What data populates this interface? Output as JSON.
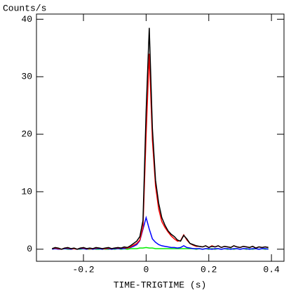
{
  "chart_data": {
    "type": "line",
    "y_label": "Counts/s",
    "x_label": "TIME-TRIGTIME (s)",
    "x": [
      -0.3,
      -0.29,
      -0.28,
      -0.27,
      -0.26,
      -0.25,
      -0.24,
      -0.23,
      -0.22,
      -0.21,
      -0.2,
      -0.19,
      -0.18,
      -0.17,
      -0.16,
      -0.15,
      -0.14,
      -0.13,
      -0.12,
      -0.11,
      -0.1,
      -0.09,
      -0.08,
      -0.07,
      -0.06,
      -0.05,
      -0.04,
      -0.03,
      -0.02,
      -0.01,
      0,
      0.01,
      0.02,
      0.03,
      0.04,
      0.05,
      0.06,
      0.07,
      0.08,
      0.09,
      0.1,
      0.11,
      0.12,
      0.13,
      0.14,
      0.15,
      0.16,
      0.17,
      0.18,
      0.19,
      0.2,
      0.21,
      0.22,
      0.23,
      0.24,
      0.25,
      0.26,
      0.27,
      0.28,
      0.29,
      0.3,
      0.31,
      0.32,
      0.33,
      0.34,
      0.35,
      0.36,
      0.37,
      0.38,
      0.39
    ],
    "series": [
      {
        "color": "#000000",
        "values": [
          0.1,
          0.3,
          0.2,
          0.0,
          0.2,
          0.3,
          0.1,
          0.2,
          0.0,
          0.2,
          0.3,
          0.1,
          0.2,
          0.1,
          0.3,
          0.2,
          0.1,
          0.2,
          0.3,
          0.1,
          0.2,
          0.3,
          0.2,
          0.4,
          0.3,
          0.6,
          1.0,
          1.4,
          2.2,
          5.0,
          24,
          38.5,
          21,
          12,
          8,
          5.5,
          4.2,
          3.2,
          2.6,
          2.2,
          1.6,
          1.4,
          2.4,
          1.8,
          1.0,
          0.8,
          0.6,
          0.5,
          0.4,
          0.6,
          0.3,
          0.5,
          0.4,
          0.6,
          0.3,
          0.5,
          0.4,
          0.3,
          0.6,
          0.4,
          0.3,
          0.5,
          0.4,
          0.3,
          0.5,
          0.2,
          0.4,
          0.3,
          0.4,
          0.3
        ]
      },
      {
        "color": "#ff0000",
        "values": [
          0.1,
          0.2,
          0.1,
          0.0,
          0.2,
          0.2,
          0.1,
          0.1,
          0.0,
          0.2,
          0.2,
          0.1,
          0.1,
          0.1,
          0.2,
          0.2,
          0.1,
          0.1,
          0.2,
          0.1,
          0.2,
          0.2,
          0.2,
          0.3,
          0.2,
          0.4,
          0.7,
          1.0,
          1.6,
          3.8,
          20,
          34,
          19,
          11,
          7,
          4.8,
          3.8,
          3.0,
          2.3,
          1.8,
          1.4,
          1.5,
          2.5,
          1.6,
          1.0,
          0.7,
          0.5,
          0.5,
          0.4,
          0.6,
          0.3,
          0.6,
          0.4,
          0.6,
          0.3,
          0.5,
          0.4,
          0.3,
          0.6,
          0.4,
          0.3,
          0.5,
          0.4,
          0.3,
          0.5,
          0.2,
          0.4,
          0.3,
          0.4,
          0.3
        ]
      },
      {
        "color": "#0000ff",
        "values": [
          0.0,
          0.1,
          0.0,
          0.0,
          0.1,
          0.1,
          0.0,
          0.1,
          0.0,
          0.1,
          0.1,
          0.0,
          0.1,
          0.0,
          0.1,
          0.1,
          0.0,
          0.1,
          0.1,
          0.0,
          0.1,
          0.1,
          0.1,
          0.1,
          0.2,
          0.3,
          0.5,
          0.8,
          1.5,
          3.5,
          5.5,
          3.5,
          1.8,
          1.2,
          0.8,
          0.6,
          0.5,
          0.4,
          0.3,
          0.3,
          0.2,
          0.3,
          0.6,
          0.3,
          0.2,
          0.1,
          0.1,
          0.1,
          0.0,
          0.1,
          0.1,
          0.0,
          0.1,
          0.1,
          0.0,
          0.1,
          0.1,
          0.0,
          0.1,
          0.1,
          0.0,
          0.1,
          0.1,
          0.0,
          0.1,
          0.1,
          0.0,
          0.1,
          0.1,
          0.0
        ]
      },
      {
        "color": "#00ee00",
        "values": [
          0.0,
          0.1,
          0.0,
          0.0,
          0.1,
          0.0,
          0.0,
          0.1,
          0.0,
          0.0,
          0.1,
          0.0,
          0.0,
          0.1,
          0.0,
          0.0,
          0.1,
          0.0,
          0.0,
          0.1,
          0.0,
          0.1,
          0.0,
          0.1,
          0.0,
          0.1,
          0.1,
          0.1,
          0.2,
          0.2,
          0.3,
          0.2,
          0.2,
          0.1,
          0.1,
          0.1,
          0.1,
          0.1,
          0.1,
          0.1,
          0.1,
          0.1,
          0.1,
          0.1,
          0.1,
          0.1,
          0.0,
          0.1,
          0.0,
          0.1,
          0.0,
          0.1,
          0.0,
          0.1,
          0.0,
          0.1,
          0.0,
          0.1,
          0.0,
          0.1,
          0.0,
          0.1,
          0.0,
          0.1,
          0.0,
          0.1,
          0.0,
          0.1,
          0.0,
          0.1
        ]
      }
    ],
    "xlim": [
      -0.35,
      0.44
    ],
    "xticks": [
      -0.2,
      0,
      0.2,
      0.4
    ],
    "ylim": [
      -2.1,
      40.9
    ],
    "yticks": [
      0,
      10,
      20,
      30,
      40
    ]
  }
}
